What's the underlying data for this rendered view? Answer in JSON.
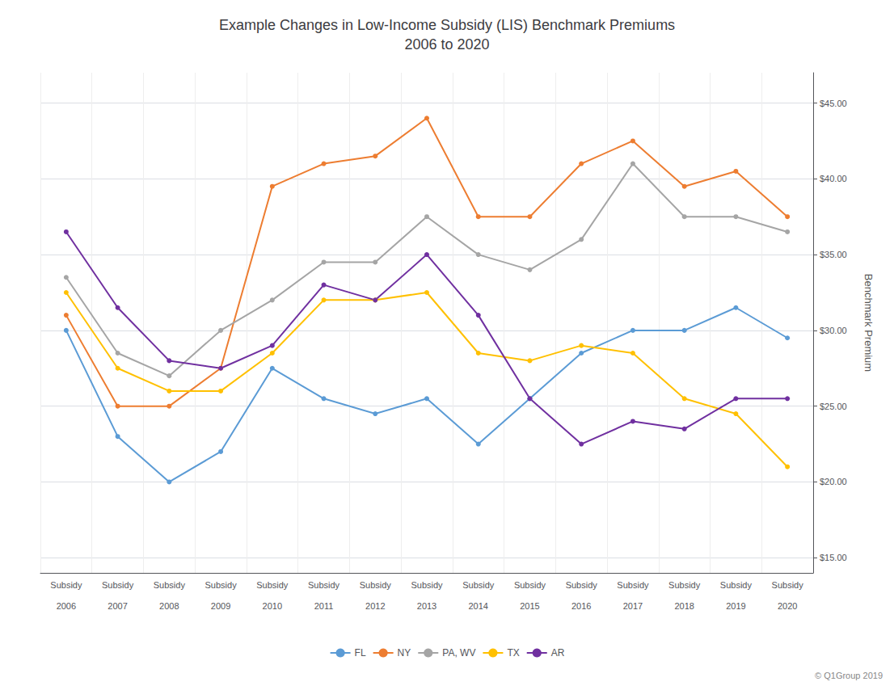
{
  "chart_data": {
    "type": "line",
    "title": "Example Changes in Low-Income Subsidy (LIS) Benchmark Premiums\n2006 to 2020",
    "y_label": "Benchmark Premium",
    "categories": [
      "Subsidy\n\n2006",
      "Subsidy\n\n2007",
      "Subsidy\n\n2008",
      "Subsidy\n\n2009",
      "Subsidy\n\n2010",
      "Subsidy\n\n2011",
      "Subsidy\n\n2012",
      "Subsidy\n\n2013",
      "Subsidy\n\n2014",
      "Subsidy\n\n2015",
      "Subsidy\n\n2016",
      "Subsidy\n\n2017",
      "Subsidy\n\n2018",
      "Subsidy\n\n2019",
      "Subsidy\n\n2020"
    ],
    "series": [
      {
        "name": "FL",
        "color": "#5B9BD5",
        "values": [
          30.0,
          23.0,
          20.0,
          22.0,
          27.5,
          25.5,
          24.5,
          25.5,
          22.5,
          25.5,
          28.5,
          30.0,
          30.0,
          31.5,
          29.5
        ]
      },
      {
        "name": "NY",
        "color": "#ED7D31",
        "values": [
          31.0,
          25.0,
          25.0,
          27.5,
          39.5,
          41.0,
          41.5,
          44.0,
          37.5,
          37.5,
          41.0,
          42.5,
          39.5,
          40.5,
          37.5
        ]
      },
      {
        "name": "PA, WV",
        "color": "#A5A5A5",
        "values": [
          33.5,
          28.5,
          27.0,
          30.0,
          32.0,
          34.5,
          34.5,
          37.5,
          35.0,
          34.0,
          36.0,
          41.0,
          37.5,
          37.5,
          36.5
        ]
      },
      {
        "name": "TX",
        "color": "#FFC000",
        "values": [
          32.5,
          27.5,
          26.0,
          26.0,
          28.5,
          32.0,
          32.0,
          32.5,
          28.5,
          28.0,
          29.0,
          28.5,
          25.5,
          24.5,
          21.0
        ]
      },
      {
        "name": "AR",
        "color": "#7030A0",
        "values": [
          36.5,
          31.5,
          28.0,
          27.5,
          29.0,
          33.0,
          32.0,
          35.0,
          31.0,
          25.5,
          22.5,
          24.0,
          23.5,
          25.5,
          25.5
        ]
      }
    ],
    "ylim": [
      14.0,
      47.0
    ],
    "yticks": [
      {
        "value": 15,
        "label": "$15.00"
      },
      {
        "value": 20,
        "label": "$20.00"
      },
      {
        "value": 25,
        "label": "$25.00"
      },
      {
        "value": 30,
        "label": "$30.00"
      },
      {
        "value": 35,
        "label": "$35.00"
      },
      {
        "value": 40,
        "label": "$40.00"
      },
      {
        "value": 45,
        "label": "$45.00"
      }
    ],
    "grid": true,
    "legend": "bottom",
    "marker": "circle",
    "annotations": [
      "© Q1Group 2019"
    ]
  }
}
